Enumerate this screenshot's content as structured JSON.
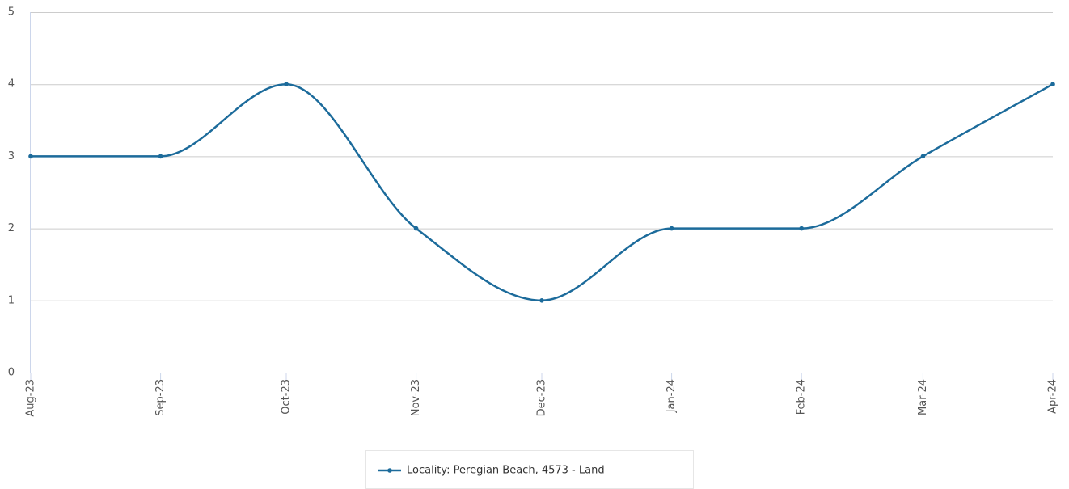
{
  "chart_data": {
    "type": "line",
    "x": [
      "2023-08",
      "2023-09",
      "2023-10",
      "2023-11",
      "2023-12",
      "2024-01",
      "2024-02",
      "2024-03",
      "2024-04"
    ],
    "xlim": [
      "2023-08",
      "2024-04"
    ],
    "xticks": [
      {
        "value": "2023-08",
        "label": "Aug-23"
      },
      {
        "value": "2023-09",
        "label": "Sep-23"
      },
      {
        "value": "2023-10",
        "label": "Oct-23"
      },
      {
        "value": "2023-11",
        "label": "Nov-23"
      },
      {
        "value": "2023-12",
        "label": "Dec-23"
      },
      {
        "value": "2024-01",
        "label": "Jan-24"
      },
      {
        "value": "2024-02",
        "label": "Feb-24"
      },
      {
        "value": "2024-03",
        "label": "Mar-24"
      },
      {
        "value": "2024-04",
        "label": "Apr-24"
      }
    ],
    "ylim": [
      0,
      5
    ],
    "yticks": [
      0,
      1,
      2,
      3,
      4,
      5
    ],
    "grid": true,
    "series": [
      {
        "name": "Locality: Peregian Beach, 4573 - Land",
        "color": "#1c6b9b",
        "values": [
          3,
          3,
          4,
          2,
          1,
          2,
          2,
          3,
          4
        ]
      }
    ],
    "legend": "bottom"
  }
}
